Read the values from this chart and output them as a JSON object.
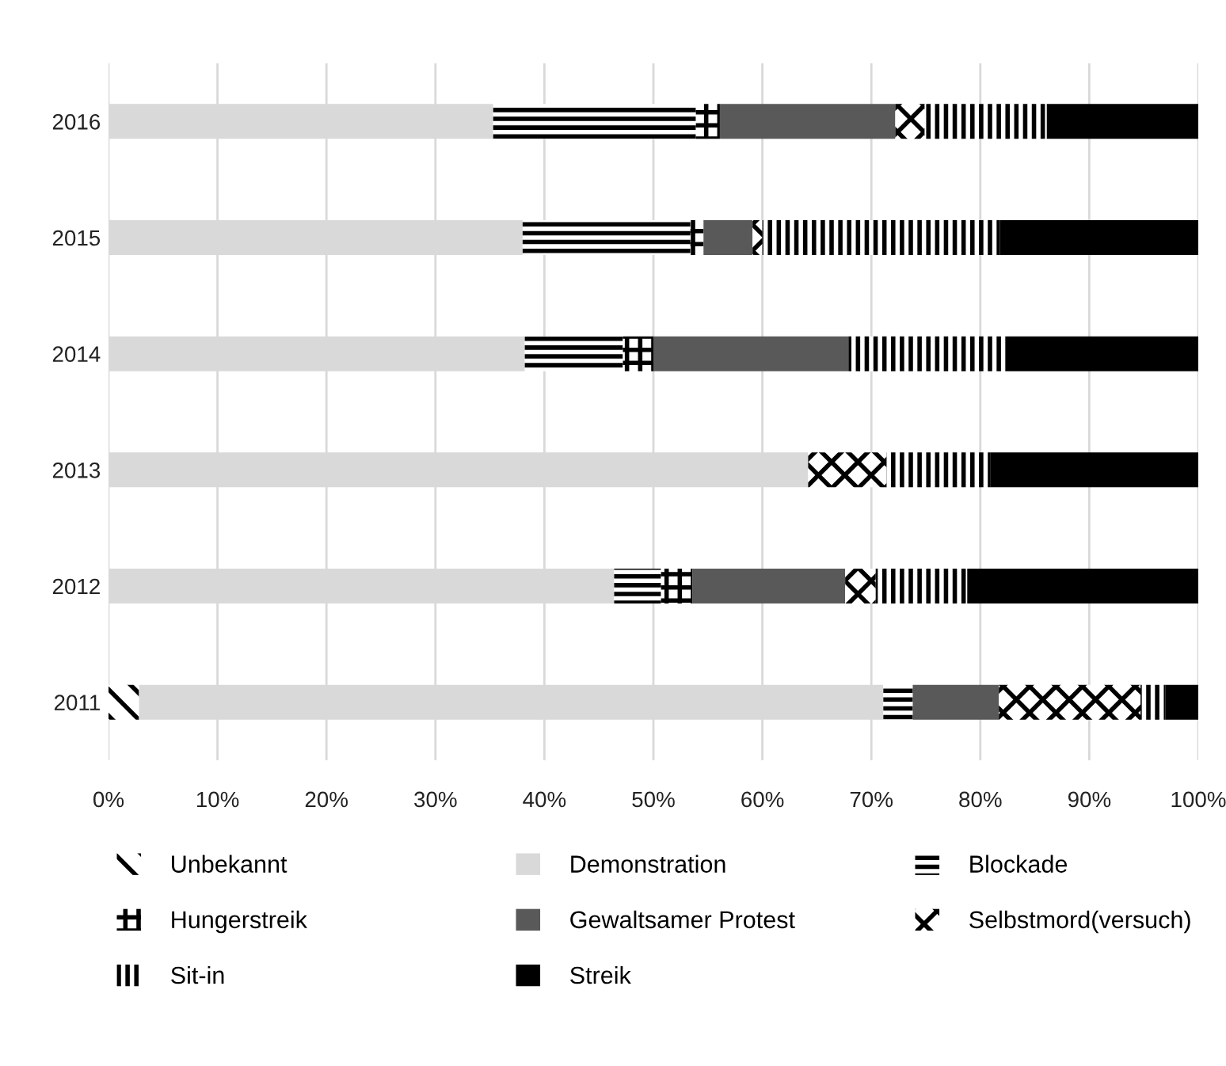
{
  "chart_data": {
    "type": "bar",
    "orientation": "horizontal",
    "stacked": true,
    "categories": [
      "2016",
      "2015",
      "2014",
      "2013",
      "2012",
      "2011"
    ],
    "series": [
      {
        "name": "Unbekannt",
        "color": "#000000",
        "values": [
          0,
          0,
          0,
          0,
          0,
          2.8
        ]
      },
      {
        "name": "Demonstration",
        "color": "#d9d9d9",
        "values": [
          35.3,
          38.0,
          38.2,
          64.2,
          46.4,
          68.3
        ]
      },
      {
        "name": "Blockade",
        "color": "#000000",
        "values": [
          18.6,
          15.4,
          9.0,
          0,
          4.3,
          2.7
        ]
      },
      {
        "name": "Hungerstreik",
        "color": "#000000",
        "values": [
          2.2,
          1.2,
          2.8,
          0,
          2.9,
          0
        ]
      },
      {
        "name": "Gewaltsamer Protest",
        "color": "#595959",
        "values": [
          16.1,
          4.5,
          17.9,
          0,
          14.0,
          7.9
        ]
      },
      {
        "name": "Selbstmord(versuch)",
        "color": "#000000",
        "values": [
          2.7,
          0.9,
          0,
          7.2,
          2.8,
          13.0
        ]
      },
      {
        "name": "Sit-in",
        "color": "#000000",
        "values": [
          11.2,
          21.8,
          14.4,
          9.5,
          8.4,
          2.3
        ]
      },
      {
        "name": "Streik",
        "color": "#000000",
        "values": [
          13.9,
          18.2,
          17.7,
          19.1,
          21.2,
          3.0
        ]
      }
    ],
    "xlim": [
      0,
      100
    ],
    "xticks": [
      {
        "value": 0,
        "label": "0%"
      },
      {
        "value": 10,
        "label": "10%"
      },
      {
        "value": 20,
        "label": "20%"
      },
      {
        "value": 30,
        "label": "30%"
      },
      {
        "value": 40,
        "label": "40%"
      },
      {
        "value": 50,
        "label": "50%"
      },
      {
        "value": 60,
        "label": "60%"
      },
      {
        "value": 70,
        "label": "70%"
      },
      {
        "value": 80,
        "label": "80%"
      },
      {
        "value": 90,
        "label": "90%"
      },
      {
        "value": 100,
        "label": "100%"
      }
    ],
    "grid": "x",
    "legend": "bottom"
  }
}
